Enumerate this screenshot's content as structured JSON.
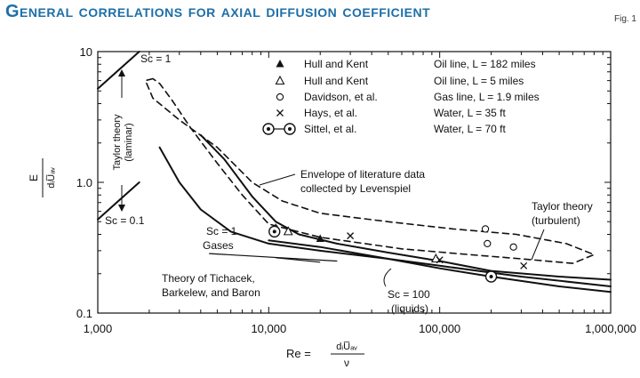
{
  "header": {
    "title": "General correlations for axial diffusion coefficient",
    "fig_label": "Fig. 1"
  },
  "colors": {
    "title": "#1d6fa8",
    "ink": "#111111"
  },
  "chart_data": {
    "type": "line",
    "x_scale": "log",
    "y_scale": "log",
    "xlim": [
      1000,
      1000000
    ],
    "ylim": [
      0.1,
      10
    ],
    "x_ticks": [
      "1,000",
      "10,000",
      "100,000",
      "1,000,000"
    ],
    "y_ticks": [
      "0.1",
      "1.0",
      "10"
    ],
    "xlabel": {
      "prefix": "Re =",
      "numerator": "dᵢU̅ₐᵥ",
      "denominator": "ν"
    },
    "ylabel": {
      "numerator": "E",
      "denominator": "dᵢU̅ₐᵥ"
    },
    "legend": [
      {
        "symbol": "filled-triangle",
        "source": "Hull and Kent",
        "condition": "Oil line, L = 182 miles"
      },
      {
        "symbol": "open-triangle",
        "source": "Hull and Kent",
        "condition": "Oil line, L = 5 miles"
      },
      {
        "symbol": "open-circle",
        "source": "Davidson, et al.",
        "condition": "Gas line, L = 1.9 miles"
      },
      {
        "symbol": "cross",
        "source": "Hays, et al.",
        "condition": "Water, L = 35 ft"
      },
      {
        "symbol": "circled-dot",
        "source": "Sittel, et al.",
        "condition": "Water, L = 70 ft"
      }
    ],
    "annotations": {
      "sc1_top": "Sc = 1",
      "sc01": "Sc = 0.1",
      "taylor_laminar_1": "Taylor theory",
      "taylor_laminar_2": "(laminar)",
      "envelope_1": "Envelope of literature data",
      "envelope_2": "collected by Levenspiel",
      "taylor_turbulent_1": "Taylor theory",
      "taylor_turbulent_2": "(turbulent)",
      "gases_1": "Sc = 1",
      "gases_2": "Gases",
      "tichacek_1": "Theory of Tichacek,",
      "tichacek_2": "Barkelew, and Baron",
      "liquids_1": "Sc = 100",
      "liquids_2": "(liquids)"
    },
    "series": [
      {
        "id": "laminar_sc1",
        "style": "solid",
        "points": [
          [
            1000,
            5.2
          ],
          [
            1750,
            10
          ]
        ]
      },
      {
        "id": "laminar_sc01",
        "style": "solid",
        "points": [
          [
            1000,
            0.52
          ],
          [
            1750,
            1.0
          ]
        ]
      },
      {
        "id": "turbulent_upper",
        "style": "solid",
        "points": [
          [
            4000,
            2.3
          ],
          [
            5500,
            1.5
          ],
          [
            8000,
            0.78
          ],
          [
            11000,
            0.5
          ],
          [
            15000,
            0.4
          ],
          [
            25000,
            0.34
          ],
          [
            50000,
            0.29
          ],
          [
            100000,
            0.25
          ],
          [
            200000,
            0.21
          ],
          [
            500000,
            0.19
          ],
          [
            1000000,
            0.18
          ]
        ]
      },
      {
        "id": "gases_sc1",
        "style": "solid",
        "points": [
          [
            2300,
            1.85
          ],
          [
            3000,
            1.0
          ],
          [
            4000,
            0.62
          ],
          [
            6000,
            0.42
          ],
          [
            10000,
            0.34
          ],
          [
            20000,
            0.3
          ],
          [
            50000,
            0.26
          ],
          [
            100000,
            0.23
          ],
          [
            300000,
            0.19
          ],
          [
            1000000,
            0.16
          ]
        ]
      },
      {
        "id": "liquids_sc100",
        "style": "solid",
        "points": [
          [
            10000,
            0.36
          ],
          [
            20000,
            0.32
          ],
          [
            50000,
            0.26
          ],
          [
            100000,
            0.22
          ],
          [
            200000,
            0.19
          ],
          [
            500000,
            0.16
          ],
          [
            1000000,
            0.145
          ]
        ]
      },
      {
        "id": "envelope",
        "style": "dashed",
        "points": [
          [
            2100,
            6.2
          ],
          [
            1900,
            6.0
          ],
          [
            2100,
            4.4
          ],
          [
            3000,
            3.0
          ],
          [
            5000,
            1.85
          ],
          [
            8000,
            1.0
          ],
          [
            12000,
            0.72
          ],
          [
            20000,
            0.58
          ],
          [
            50000,
            0.5
          ],
          [
            120000,
            0.44
          ],
          [
            280000,
            0.4
          ],
          [
            550000,
            0.34
          ],
          [
            800000,
            0.28
          ],
          [
            600000,
            0.24
          ],
          [
            300000,
            0.26
          ],
          [
            150000,
            0.28
          ],
          [
            60000,
            0.31
          ],
          [
            20000,
            0.38
          ],
          [
            10000,
            0.48
          ],
          [
            7000,
            0.8
          ],
          [
            5000,
            1.4
          ],
          [
            3500,
            2.6
          ],
          [
            2700,
            4.3
          ],
          [
            2300,
            5.7
          ],
          [
            2100,
            6.2
          ]
        ]
      },
      {
        "id": "tichacek_pointer",
        "style": "solid",
        "points": [
          [
            4500,
            0.285
          ],
          [
            25000,
            0.25
          ]
        ]
      }
    ],
    "points": {
      "filled_triangle": [
        [
          11000,
          0.45
        ],
        [
          20000,
          0.37
        ]
      ],
      "open_triangle": [
        [
          13000,
          0.42
        ],
        [
          95000,
          0.26
        ]
      ],
      "open_circle": [
        [
          185000,
          0.44
        ],
        [
          190000,
          0.34
        ],
        [
          270000,
          0.32
        ]
      ],
      "cross": [
        [
          30000,
          0.39
        ],
        [
          100000,
          0.255
        ],
        [
          310000,
          0.23
        ]
      ],
      "circled_dot": [
        [
          10800,
          0.42
        ],
        [
          200000,
          0.19
        ]
      ]
    }
  }
}
